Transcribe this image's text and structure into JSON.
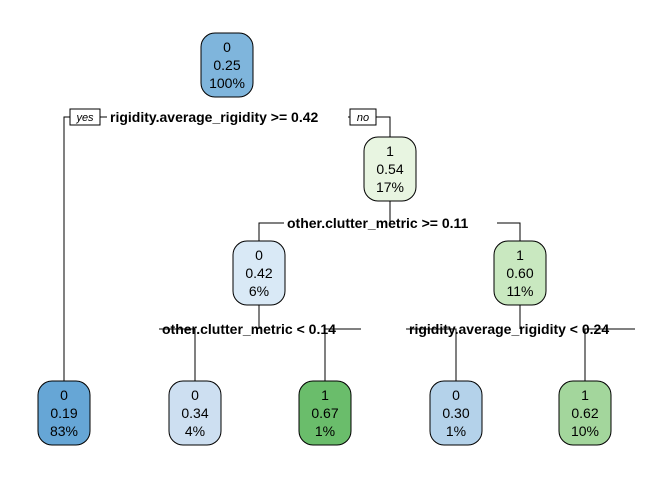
{
  "branch_labels": {
    "left": "yes",
    "right": "no"
  },
  "nodes": [
    {
      "id": "root",
      "class": "0",
      "prob": "0.25",
      "pct": "100%",
      "fill": "#7fb5dc"
    },
    {
      "id": "n2",
      "class": "0",
      "prob": "0.19",
      "pct": "83%",
      "fill": "#66a6d6"
    },
    {
      "id": "n3",
      "class": "1",
      "prob": "0.54",
      "pct": "17%",
      "fill": "#e8f5e1"
    },
    {
      "id": "n6",
      "class": "0",
      "prob": "0.42",
      "pct": "6%",
      "fill": "#d9e9f6"
    },
    {
      "id": "n7",
      "class": "1",
      "prob": "0.60",
      "pct": "11%",
      "fill": "#c9e8c0"
    },
    {
      "id": "n12",
      "class": "0",
      "prob": "0.34",
      "pct": "4%",
      "fill": "#cddff1"
    },
    {
      "id": "n13",
      "class": "1",
      "prob": "0.67",
      "pct": "1%",
      "fill": "#6abd6b"
    },
    {
      "id": "n14",
      "class": "0",
      "prob": "0.30",
      "pct": "1%",
      "fill": "#b4d2ea"
    },
    {
      "id": "n15",
      "class": "1",
      "prob": "0.62",
      "pct": "10%",
      "fill": "#a3d69c"
    }
  ],
  "splits": [
    {
      "node": "root",
      "label": "rigidity.average_rigidity >= 0.42"
    },
    {
      "node": "n3",
      "label": "other.clutter_metric >= 0.11"
    },
    {
      "node": "n6",
      "label": "other.clutter_metric < 0.14"
    },
    {
      "node": "n7",
      "label": "rigidity.average_rigidity < 0.24"
    }
  ]
}
